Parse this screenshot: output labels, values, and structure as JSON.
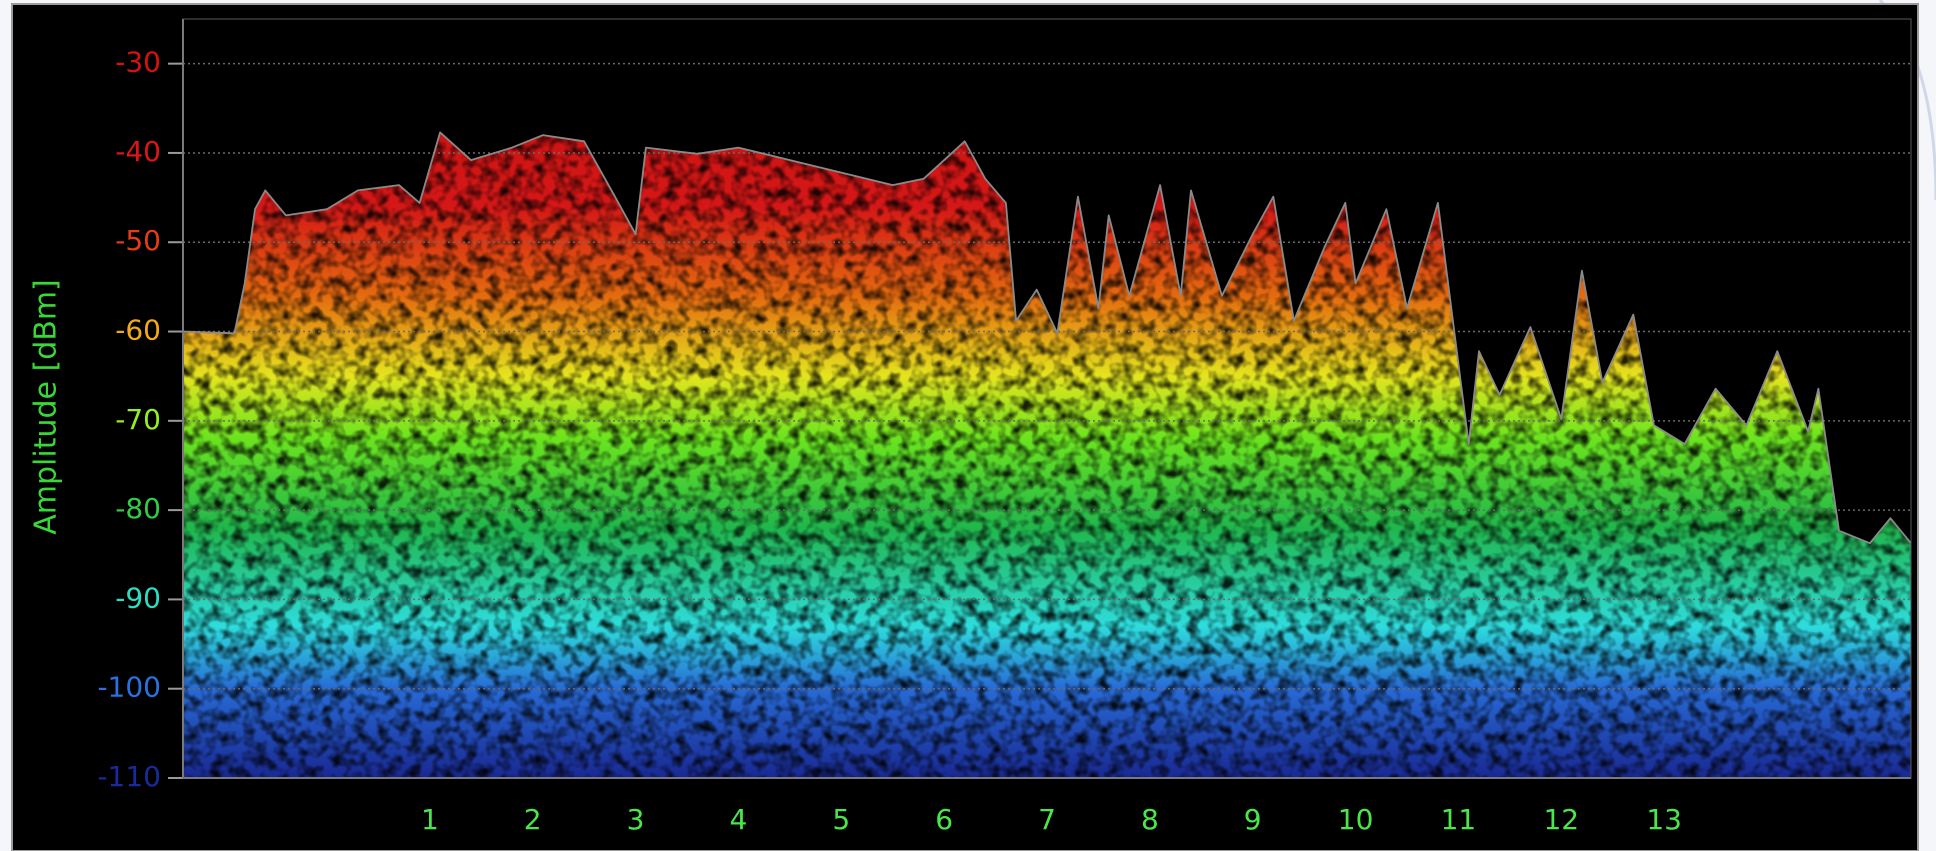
{
  "chart_data": {
    "type": "line",
    "y_label": "Amplitude [dBm]",
    "x": [
      -1.4,
      -0.9,
      -0.8,
      -0.7,
      -0.6,
      -0.4,
      0.0,
      0.3,
      0.7,
      0.9,
      1.1,
      1.4,
      1.8,
      2.1,
      2.5,
      2.8,
      3.0,
      3.1,
      3.6,
      4.0,
      4.5,
      5.0,
      5.5,
      5.8,
      6.2,
      6.4,
      6.6,
      6.7,
      6.9,
      7.1,
      7.3,
      7.5,
      7.6,
      7.8,
      8.1,
      8.3,
      8.4,
      8.7,
      9.0,
      9.2,
      9.4,
      9.7,
      9.9,
      10.0,
      10.3,
      10.5,
      10.8,
      10.9,
      11.1,
      11.2,
      11.4,
      11.7,
      12.0,
      12.2,
      12.4,
      12.7,
      12.9,
      13.2,
      13.5,
      13.8,
      14.1,
      14.4,
      14.5,
      14.7,
      15.0,
      15.2,
      15.4
    ],
    "values": [
      -60,
      -60.2,
      -54.6,
      -46.3,
      -44.2,
      -47,
      -46.3,
      -44.2,
      -43.6,
      -45.6,
      -37.7,
      -40.8,
      -39.4,
      -38,
      -38.7,
      -44.9,
      -49.1,
      -39.4,
      -40.1,
      -39.4,
      -40.8,
      -42.2,
      -43.6,
      -42.9,
      -38.7,
      -42.9,
      -45.6,
      -58.8,
      -55.3,
      -60.2,
      -44.9,
      -57.4,
      -47,
      -56,
      -43.6,
      -56,
      -44.2,
      -56,
      -49.1,
      -44.9,
      -58.8,
      -50.5,
      -45.6,
      -54.6,
      -46.3,
      -57.4,
      -45.6,
      -54.6,
      -72.6,
      -62.2,
      -67.1,
      -59.5,
      -69.8,
      -53.2,
      -65.7,
      -58.1,
      -70.5,
      -72.6,
      -66.4,
      -70.5,
      -62.2,
      -71.2,
      -66.4,
      -82.3,
      -83.7,
      -80.9,
      -83.7
    ],
    "color": "#8a8a8a",
    "xlim": [
      -1.4,
      15.4
    ],
    "xticks": [
      1,
      2,
      3,
      4,
      5,
      6,
      7,
      8,
      9,
      10,
      11,
      12,
      13
    ],
    "ylim": [
      -110,
      -25
    ],
    "yticks": [
      -30,
      -40,
      -50,
      -60,
      -70,
      -80,
      -90,
      -100,
      -110
    ],
    "grid": true,
    "colormap": [
      {
        "value": -110,
        "color": "#1a2a9a"
      },
      {
        "value": -100,
        "color": "#2a70e0"
      },
      {
        "value": -93,
        "color": "#30e8e8"
      },
      {
        "value": -82,
        "color": "#22c050"
      },
      {
        "value": -72,
        "color": "#70f020"
      },
      {
        "value": -65,
        "color": "#f0f020"
      },
      {
        "value": -56,
        "color": "#f07010"
      },
      {
        "value": -46,
        "color": "#e01818"
      },
      {
        "value": -25,
        "color": "#d01010"
      }
    ],
    "y_label_color": "#38d838",
    "x_tick_color": "#48e848"
  }
}
